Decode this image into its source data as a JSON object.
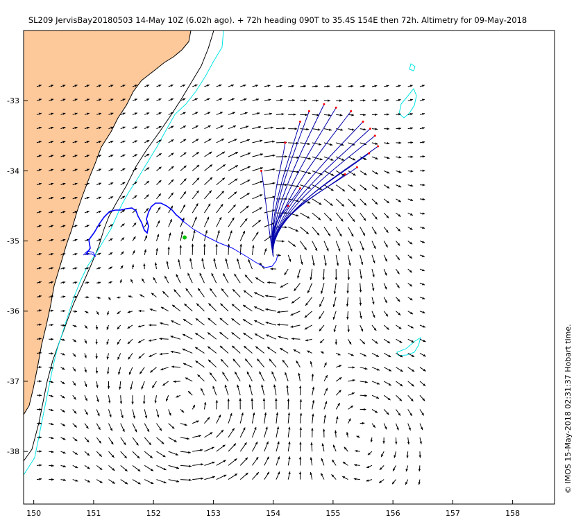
{
  "title": "SL209 JervisBay20180503 14-May 10Z (6.02h ago). + 72h heading 090T to 35.4S 154E then 72h. Altimetry for 09-May-2018",
  "timestamp": "© IMOS 15-May-2018 02:31:37 Hobart time.",
  "axes": {
    "lon_range": [
      149.83,
      158.7
    ],
    "lat_range": [
      -38.75,
      -32.0
    ],
    "x_ticks": [
      150,
      151,
      152,
      153,
      154,
      155,
      156,
      157,
      158
    ],
    "y_ticks": [
      -33,
      -34,
      -35,
      -36,
      -37,
      -38
    ]
  },
  "colors": {
    "land": "#FDC89A",
    "coast": "#000000",
    "shelf_200m": "#000000",
    "contour_cyan": "#00E5E5",
    "arrows": "#000000",
    "glider_track": "#0000FF",
    "glider_position": "#00C000",
    "projections": "#0000AA",
    "projection_ends": "#FF0000"
  },
  "glider_position": [
    152.52,
    -34.95
  ],
  "projection_origin": [
    154.0,
    -35.22
  ],
  "projection_ends": [
    [
      153.8,
      -34.0
    ],
    [
      154.2,
      -33.6
    ],
    [
      154.45,
      -33.3
    ],
    [
      154.6,
      -33.15
    ],
    [
      154.85,
      -33.05
    ],
    [
      155.05,
      -33.1
    ],
    [
      155.3,
      -33.15
    ],
    [
      155.5,
      -33.3
    ],
    [
      155.62,
      -33.4
    ],
    [
      155.7,
      -33.5
    ],
    [
      155.75,
      -33.65
    ],
    [
      155.6,
      -33.75
    ],
    [
      155.4,
      -33.95
    ],
    [
      155.2,
      -34.05
    ],
    [
      154.45,
      -34.25
    ],
    [
      154.25,
      -34.5
    ]
  ]
}
